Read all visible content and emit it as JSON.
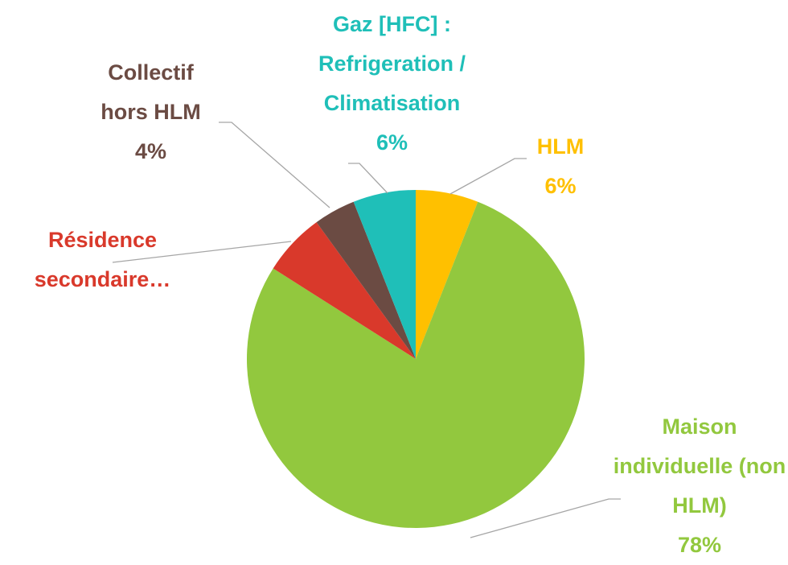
{
  "chart_data": {
    "type": "pie",
    "categories": [
      "HLM",
      "Maison individuelle (non HLM)",
      "Résidence secondaire…",
      "Collectif hors HLM",
      "Gaz [HFC] : Refrigeration / Climatisation"
    ],
    "values": [
      6,
      78,
      6,
      4,
      6
    ],
    "value_labels": [
      "6%",
      "78%",
      null,
      "4%",
      "6%"
    ],
    "colors": [
      "#ffc000",
      "#92c83e",
      "#d9392b",
      "#6b4b43",
      "#1fbfb8"
    ]
  }
}
